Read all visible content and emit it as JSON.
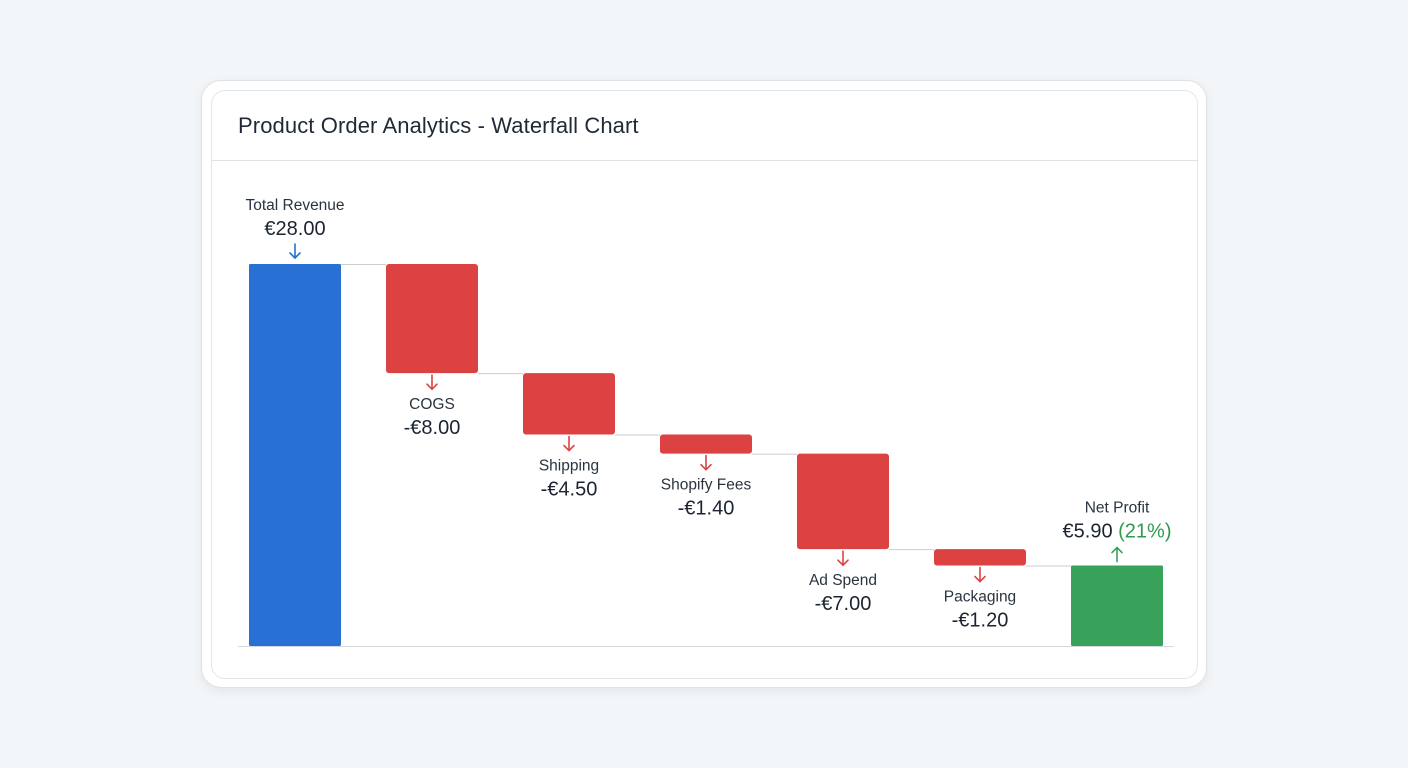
{
  "title": "Product Order Analytics - Waterfall Chart",
  "colors": {
    "total": "#2870d3",
    "decrease": "#dc4242",
    "result": "#38a15a",
    "result_text": "#2e9a4f",
    "connector": "#c9ced3",
    "baseline": "#d5d9dd"
  },
  "chart_data": {
    "type": "bar",
    "subtype": "waterfall",
    "title": "Product Order Analytics - Waterfall Chart",
    "xlabel": "",
    "ylabel": "",
    "ylim": [
      0,
      28
    ],
    "grid": false,
    "categories": [
      "Total Revenue",
      "COGS",
      "Shipping",
      "Shopify Fees",
      "Ad Spend",
      "Packaging",
      "Net Profit"
    ],
    "values": [
      28.0,
      -8.0,
      -4.5,
      -1.4,
      -7.0,
      -1.2,
      5.9
    ],
    "kinds": [
      "total",
      "decrease",
      "decrease",
      "decrease",
      "decrease",
      "decrease",
      "result"
    ],
    "value_labels": [
      "€28.00",
      "-€8.00",
      "-€4.50",
      "-€1.40",
      "-€7.00",
      "-€1.20",
      "€5.90"
    ],
    "extra_labels": [
      "",
      "",
      "",
      "",
      "",
      "",
      "(21%)"
    ]
  }
}
